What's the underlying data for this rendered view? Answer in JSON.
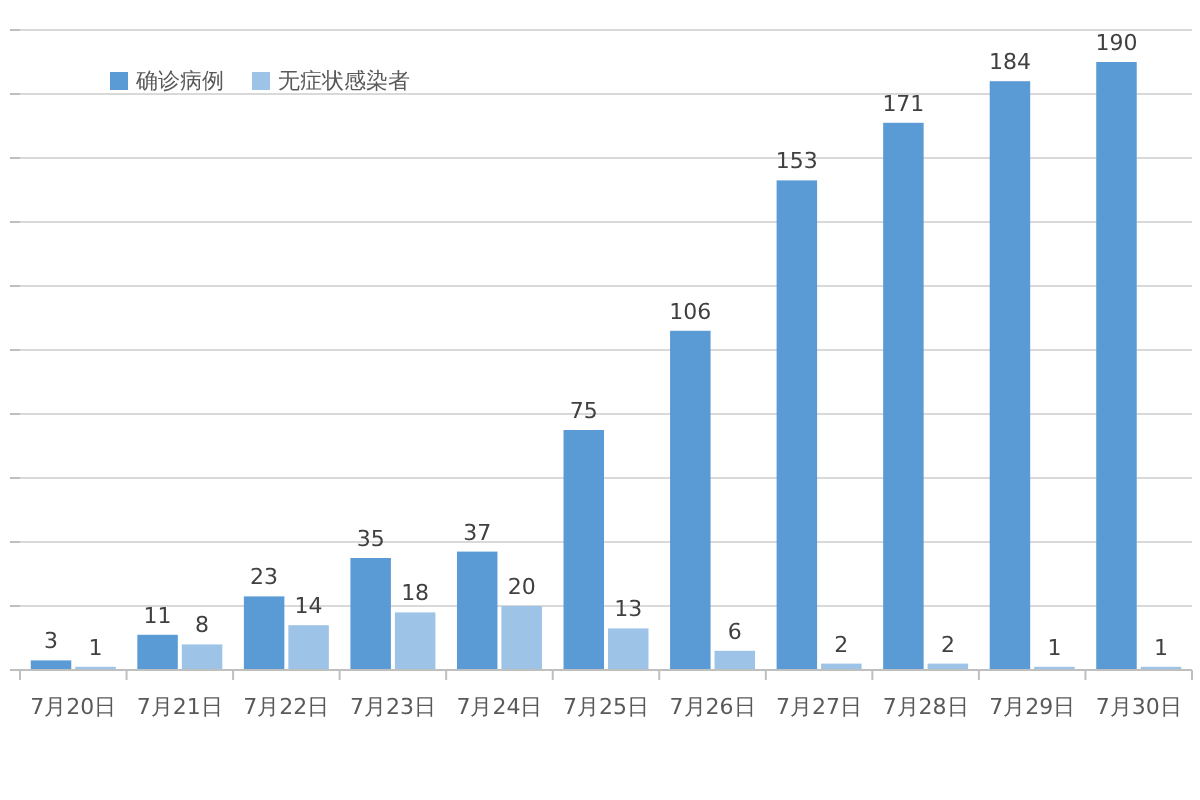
{
  "chart_data": {
    "type": "bar",
    "categories": [
      "7月20日",
      "7月21日",
      "7月22日",
      "7月23日",
      "7月24日",
      "7月25日",
      "7月26日",
      "7月27日",
      "7月28日",
      "7月29日",
      "7月30日"
    ],
    "series": [
      {
        "name": "确诊病例",
        "color": "#5b9bd5",
        "values": [
          3,
          11,
          23,
          35,
          37,
          75,
          106,
          153,
          171,
          184,
          190
        ]
      },
      {
        "name": "无症状感染者",
        "color": "#9dc3e6",
        "values": [
          1,
          8,
          14,
          18,
          20,
          13,
          6,
          2,
          2,
          1,
          1
        ]
      }
    ],
    "ylim": [
      0,
      200
    ],
    "yticks": [
      {
        "value": 0,
        "label": null
      },
      {
        "value": 20,
        "label": null
      },
      {
        "value": 40,
        "label": null
      },
      {
        "value": 60,
        "label": null
      },
      {
        "value": 80,
        "label": null
      },
      {
        "value": 100,
        "label": null
      },
      {
        "value": 120,
        "label": null
      },
      {
        "value": 140,
        "label": null
      },
      {
        "value": 160,
        "label": null
      },
      {
        "value": 180,
        "label": null
      },
      {
        "value": 200,
        "label": null
      }
    ],
    "tick_labels": "x",
    "grid": "y",
    "legend": "top left",
    "data_labels": true
  }
}
